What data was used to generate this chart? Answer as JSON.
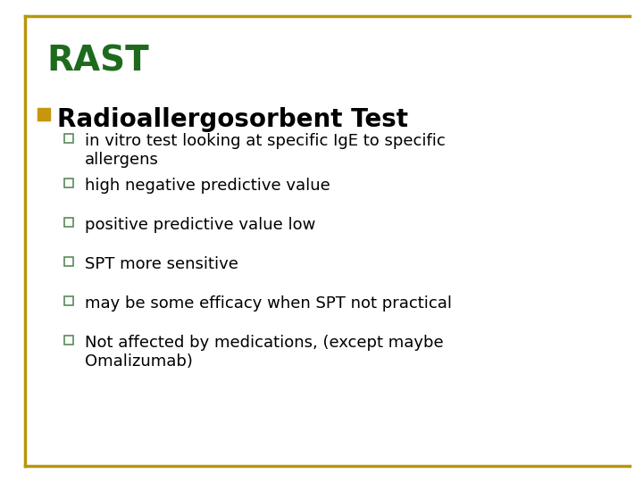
{
  "title": "RAST",
  "title_color": "#1E6B1E",
  "background_color": "#FFFFFF",
  "border_color": "#B8960C",
  "heading": "Radioallergosorbent Test",
  "heading_color": "#000000",
  "heading_bullet_color": "#C8960C",
  "bullet_items": [
    "in vitro test looking at specific IgE to specific\nallergens",
    "high negative predictive value",
    "positive predictive value low",
    "SPT more sensitive",
    "may be some efficacy when SPT not practical",
    "Not affected by medications, (except maybe\nOmalizumab)"
  ],
  "bullet_color": "#000000",
  "sub_bullet_outline_color": "#5A8A5A",
  "title_fontsize": 28,
  "heading_fontsize": 20,
  "bullet_fontsize": 13
}
